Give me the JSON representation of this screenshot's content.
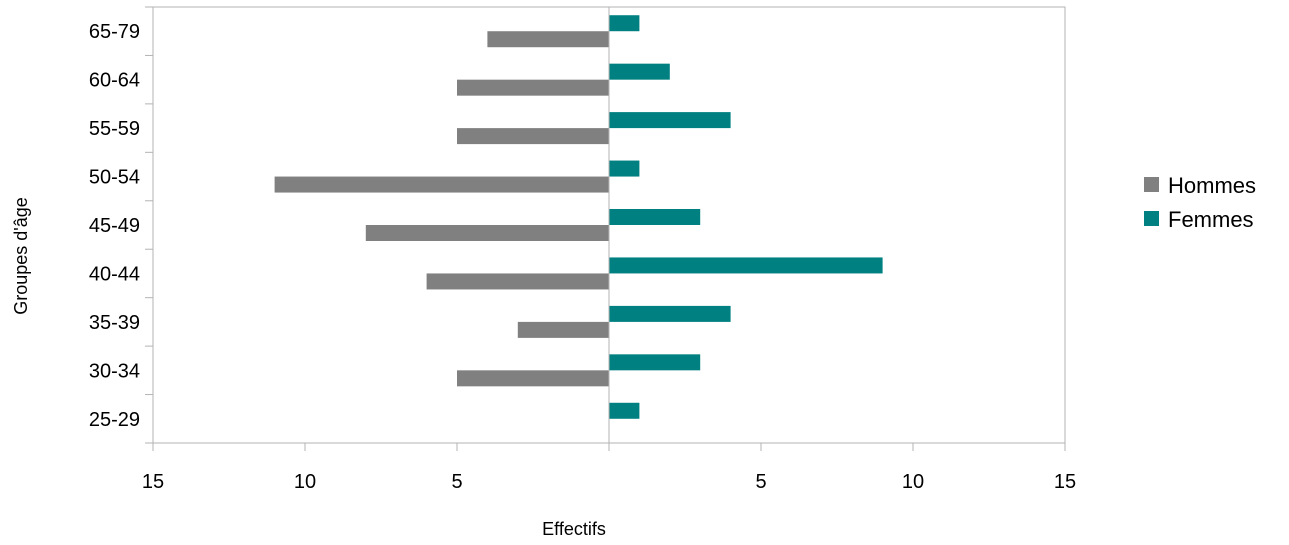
{
  "chart_data": {
    "type": "bar",
    "orientation": "horizontal",
    "title": "",
    "xlabel": "Effectifs",
    "ylabel": "Groupes d'âge",
    "categories": [
      "25-29",
      "30-34",
      "35-39",
      "40-44",
      "45-49",
      "50-54",
      "55-59",
      "60-64",
      "65-79"
    ],
    "series": [
      {
        "name": "Hommes",
        "color": "#808080",
        "values": [
          0,
          5,
          3,
          6,
          8,
          11,
          5,
          5,
          4
        ],
        "side": "left"
      },
      {
        "name": "Femmes",
        "color": "#008080",
        "values": [
          1,
          3,
          4,
          9,
          3,
          1,
          4,
          2,
          1
        ],
        "side": "right"
      }
    ],
    "xlim": [
      -15,
      15
    ],
    "x_ticks": [
      {
        "value": -15,
        "label": "15"
      },
      {
        "value": -10,
        "label": "10"
      },
      {
        "value": -5,
        "label": "5"
      },
      {
        "value": 5,
        "label": "5"
      },
      {
        "value": 10,
        "label": "10"
      },
      {
        "value": 15,
        "label": "15"
      }
    ],
    "grid": false,
    "legend_position": "right"
  }
}
